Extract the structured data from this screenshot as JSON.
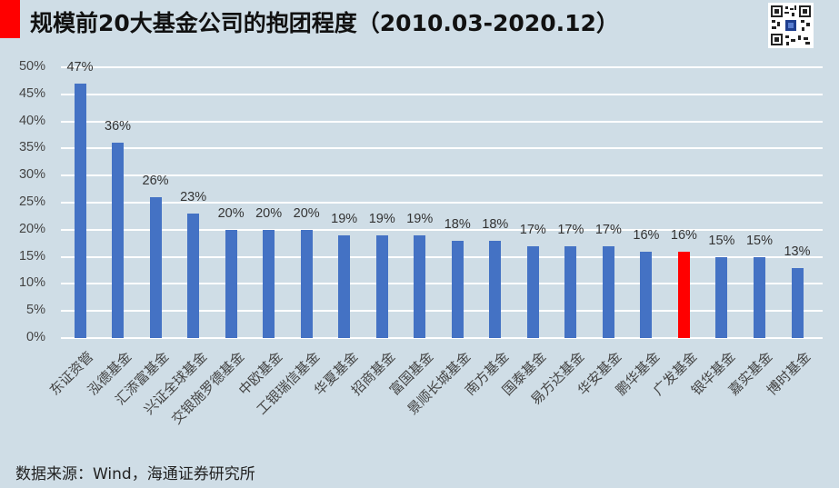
{
  "header": {
    "title": "规模前20大基金公司的抱团程度（2010.03-2020.12）",
    "accent_color": "#ff0000",
    "qr_code": "qr-code-icon"
  },
  "footer": {
    "source": "数据来源：Wind，海通证券研究所"
  },
  "colors": {
    "background": "#cfdde6",
    "bar_default": "#4472c4",
    "bar_highlight": "#ff0000",
    "gridline": "#ffffff"
  },
  "chart_data": {
    "type": "bar",
    "title": "规模前20大基金公司的抱团程度（2010.03-2020.12）",
    "xlabel": "",
    "ylabel": "",
    "ylim": [
      0,
      0.5
    ],
    "y_ticks": [
      "0%",
      "5%",
      "10%",
      "15%",
      "20%",
      "25%",
      "30%",
      "35%",
      "40%",
      "45%",
      "50%"
    ],
    "grid": true,
    "legend": "none",
    "categories": [
      "东证资管",
      "泓德基金",
      "汇添富基金",
      "兴证全球基金",
      "交银施罗德基金",
      "中欧基金",
      "工银瑞信基金",
      "华夏基金",
      "招商基金",
      "富国基金",
      "景顺长城基金",
      "南方基金",
      "国泰基金",
      "易方达基金",
      "华安基金",
      "鹏华基金",
      "广发基金",
      "银华基金",
      "嘉实基金",
      "博时基金"
    ],
    "values": [
      0.47,
      0.36,
      0.26,
      0.23,
      0.2,
      0.2,
      0.2,
      0.19,
      0.19,
      0.19,
      0.18,
      0.18,
      0.17,
      0.17,
      0.17,
      0.16,
      0.16,
      0.15,
      0.15,
      0.13
    ],
    "data_labels": [
      "47%",
      "36%",
      "26%",
      "23%",
      "20%",
      "20%",
      "20%",
      "19%",
      "19%",
      "19%",
      "18%",
      "18%",
      "17%",
      "17%",
      "17%",
      "16%",
      "16%",
      "15%",
      "15%",
      "13%"
    ],
    "highlight_index": 16,
    "highlight_category": "广发基金",
    "source": "数据来源：Wind，海通证券研究所"
  }
}
